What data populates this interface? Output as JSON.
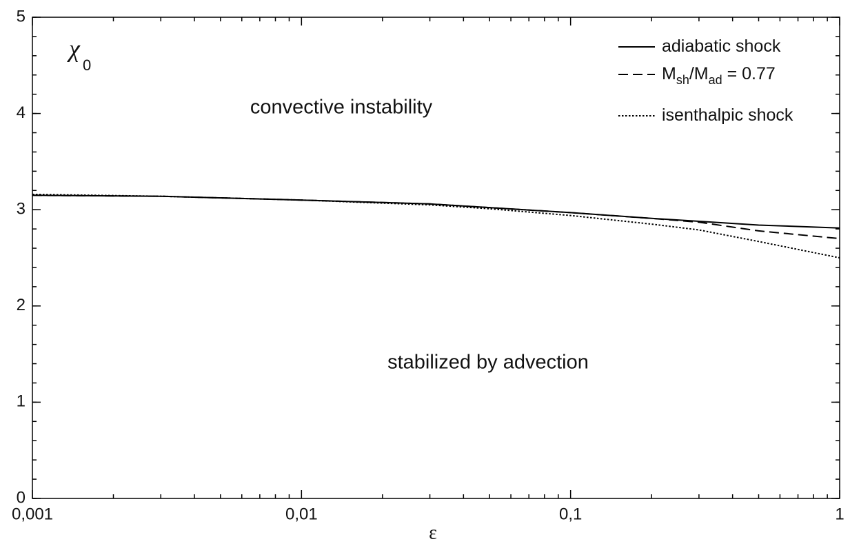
{
  "chart_data": {
    "type": "line",
    "x_label": "ε",
    "y_label": "χ",
    "y_label_sub": "0",
    "annotations": [
      "convective instability",
      "stabilized by advection"
    ],
    "xscale": "log",
    "xlim": [
      0.001,
      1
    ],
    "ylim": [
      0,
      5
    ],
    "xticks": [
      {
        "value": 0.001,
        "label": "0,001"
      },
      {
        "value": 0.01,
        "label": "0,01"
      },
      {
        "value": 0.1,
        "label": "0,1"
      },
      1
    ],
    "yticks": [
      0,
      1,
      2,
      3,
      4,
      5
    ],
    "legend": "upper right",
    "series": [
      {
        "name": [
          {
            "text": "adiabatic shock",
            "sub": false
          }
        ],
        "color": "#000000",
        "dash": "solid",
        "x": [
          0.001,
          0.003,
          0.01,
          0.03,
          0.1,
          0.2,
          0.3,
          0.5,
          1
        ],
        "y": [
          3.15,
          3.14,
          3.1,
          3.06,
          2.97,
          2.91,
          2.88,
          2.84,
          2.81
        ]
      },
      {
        "name": [
          {
            "text": "M",
            "sub": false
          },
          {
            "text": "sh",
            "sub": true
          },
          {
            "text": "/M",
            "sub": false
          },
          {
            "text": "ad",
            "sub": true
          },
          {
            "text": " = 0.77",
            "sub": false
          }
        ],
        "color": "#000000",
        "dash": "dashed",
        "x": [
          0.001,
          0.003,
          0.01,
          0.03,
          0.1,
          0.2,
          0.3,
          0.5,
          1
        ],
        "y": [
          3.15,
          3.14,
          3.1,
          3.06,
          2.97,
          2.91,
          2.87,
          2.78,
          2.7
        ]
      },
      {
        "name": [
          {
            "text": "isenthalpic shock",
            "sub": false
          }
        ],
        "color": "#000000",
        "dash": "dotted",
        "x": [
          0.001,
          0.003,
          0.01,
          0.03,
          0.05,
          0.1,
          0.2,
          0.3,
          0.5,
          1
        ],
        "y": [
          3.16,
          3.14,
          3.1,
          3.05,
          3.01,
          2.94,
          2.85,
          2.79,
          2.67,
          2.5
        ]
      }
    ]
  }
}
